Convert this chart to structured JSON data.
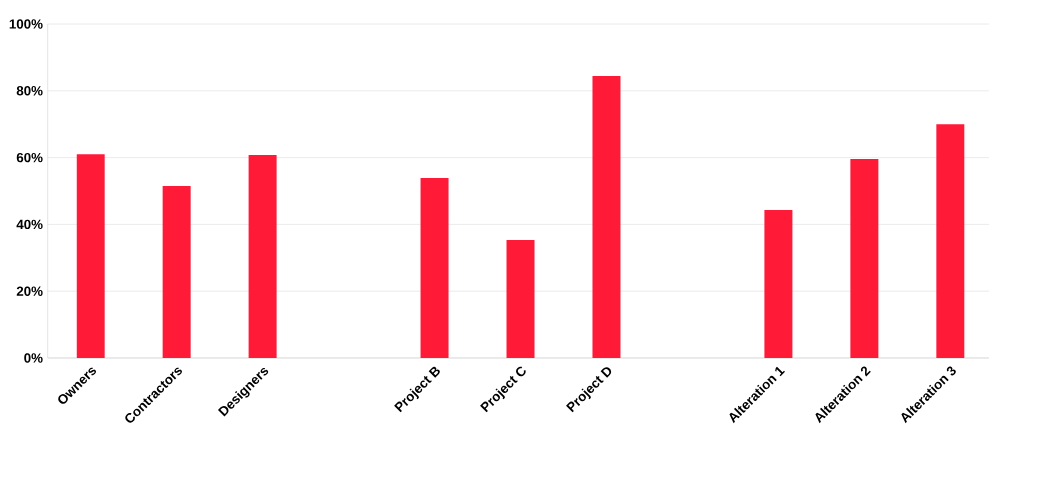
{
  "chart_data": {
    "type": "bar",
    "categories": [
      "Owners",
      "Contractors",
      "Designers",
      null,
      "Project B",
      "Project C",
      "Project D",
      null,
      "Alteration 1",
      "Alteration 2",
      "Alteration 3"
    ],
    "values": [
      61,
      51.5,
      60.8,
      null,
      53.9,
      35.3,
      84.4,
      null,
      44.3,
      59.6,
      70
    ],
    "color": "#ff1a38",
    "ylim": [
      0,
      100
    ],
    "yticks": [
      {
        "value": 0,
        "label": "0%"
      },
      {
        "value": 20,
        "label": "20%"
      },
      {
        "value": 40,
        "label": "40%"
      },
      {
        "value": 60,
        "label": "60%"
      },
      {
        "value": 80,
        "label": "80%"
      },
      {
        "value": 100,
        "label": "100%"
      }
    ],
    "grid": "y"
  }
}
